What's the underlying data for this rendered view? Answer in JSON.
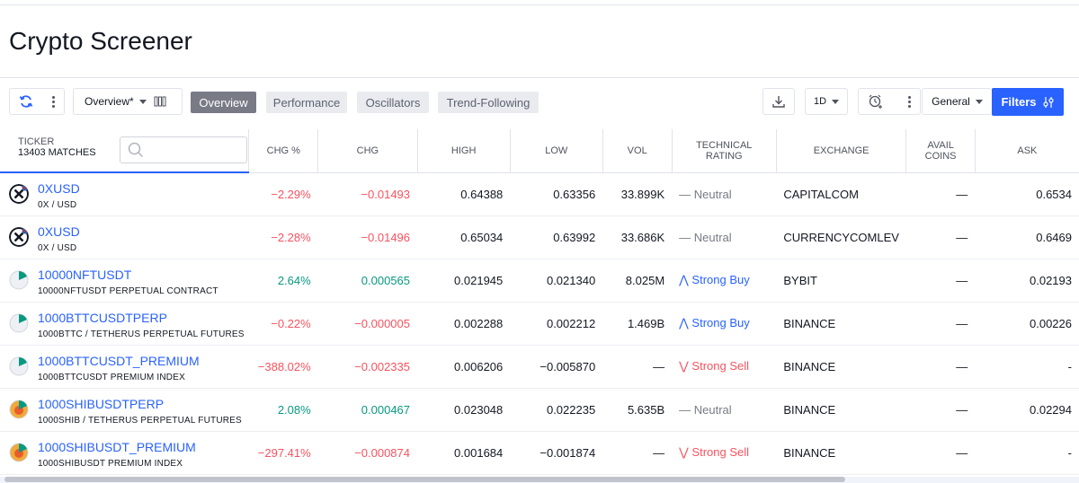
{
  "page": {
    "title": "Crypto Screener"
  },
  "toolbar": {
    "overview_select": "Overview*",
    "tabs": [
      "Overview",
      "Performance",
      "Oscillators",
      "Trend-Following"
    ],
    "interval": "1D",
    "category": "General",
    "filters_label": "Filters"
  },
  "table": {
    "ticker_header": "TICKER",
    "matches": "13403 MATCHES",
    "headers": {
      "chg_pct": "CHG %",
      "chg": "CHG",
      "high": "HIGH",
      "low": "LOW",
      "vol": "VOL",
      "rating_line1": "TECHNICAL",
      "rating_line2": "RATING",
      "exchange": "EXCHANGE",
      "coins_line1": "AVAIL",
      "coins_line2": "COINS",
      "ask": "ASK"
    },
    "rows": [
      {
        "symbol": "0XUSD",
        "desc": "0X / USD",
        "chg_pct": "−2.29%",
        "chg": "−0.01493",
        "high": "0.64388",
        "low": "0.63356",
        "vol": "33.899K",
        "rating": "— Neutral",
        "exchange": "CAPITALCOM",
        "coins": "—",
        "ask": "0.6534"
      },
      {
        "symbol": "0XUSD",
        "desc": "0X / USD",
        "chg_pct": "−2.28%",
        "chg": "−0.01496",
        "high": "0.65034",
        "low": "0.63992",
        "vol": "33.686K",
        "rating": "— Neutral",
        "exchange": "CURRENCYCOMLEV",
        "coins": "—",
        "ask": "0.6469"
      },
      {
        "symbol": "10000NFTUSDT",
        "desc": "10000NFTUSDT PERPETUAL CONTRACT",
        "chg_pct": "2.64%",
        "chg": "0.000565",
        "high": "0.021945",
        "low": "0.021340",
        "vol": "8.025M",
        "rating": "⋀ Strong Buy",
        "exchange": "BYBIT",
        "coins": "—",
        "ask": "0.02193"
      },
      {
        "symbol": "1000BTTCUSDTPERP",
        "desc": "1000BTTC / TETHERUS PERPETUAL FUTURES",
        "chg_pct": "−0.22%",
        "chg": "−0.000005",
        "high": "0.002288",
        "low": "0.002212",
        "vol": "1.469B",
        "rating": "⋀ Strong Buy",
        "exchange": "BINANCE",
        "coins": "—",
        "ask": "0.00226"
      },
      {
        "symbol": "1000BTTCUSDT_PREMIUM",
        "desc": "1000BTTCUSDT PREMIUM INDEX",
        "chg_pct": "−388.02%",
        "chg": "−0.002335",
        "high": "0.006206",
        "low": "−0.005870",
        "vol": "—",
        "rating": "⋁ Strong Sell",
        "exchange": "BINANCE",
        "coins": "—",
        "ask": "-"
      },
      {
        "symbol": "1000SHIBUSDTPERP",
        "desc": "1000SHIB / TETHERUS PERPETUAL FUTURES",
        "chg_pct": "2.08%",
        "chg": "0.000467",
        "high": "0.023048",
        "low": "0.022235",
        "vol": "5.635B",
        "rating": "— Neutral",
        "exchange": "BINANCE",
        "coins": "—",
        "ask": "0.02294"
      },
      {
        "symbol": "1000SHIBUSDT_PREMIUM",
        "desc": "1000SHIBUSDT PREMIUM INDEX",
        "chg_pct": "−297.41%",
        "chg": "−0.000874",
        "high": "0.001684",
        "low": "−0.001874",
        "vol": "—",
        "rating": "⋁ Strong Sell",
        "exchange": "BINANCE",
        "coins": "—",
        "ask": "-"
      }
    ]
  },
  "colors": {
    "accent": "#2962ff",
    "negative": "#f7525f",
    "positive": "#089981"
  }
}
